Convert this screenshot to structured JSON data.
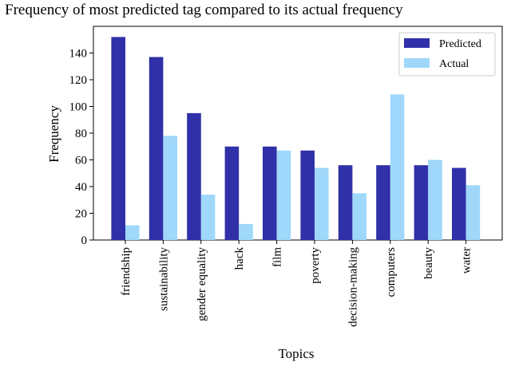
{
  "chart_data": {
    "type": "bar",
    "title": "Frequency of most predicted tag compared to its actual frequency",
    "xlabel": "Topics",
    "ylabel": "Frequency",
    "categories": [
      "friendship",
      "sustainability",
      "gender equality",
      "hack",
      "film",
      "poverty",
      "decision-making",
      "computers",
      "beauty",
      "water"
    ],
    "series": [
      {
        "name": "Predicted",
        "color": "#3030a8",
        "values": [
          152,
          137,
          95,
          70,
          70,
          67,
          56,
          56,
          56,
          54
        ]
      },
      {
        "name": "Actual",
        "color": "#9fd8fa",
        "values": [
          11,
          78,
          34,
          12,
          67,
          54,
          35,
          109,
          60,
          41
        ]
      }
    ],
    "ylim": [
      0,
      155
    ],
    "yticks": [
      0,
      20,
      40,
      60,
      80,
      100,
      120,
      140
    ],
    "grid": false,
    "legend_position": "top-right"
  }
}
